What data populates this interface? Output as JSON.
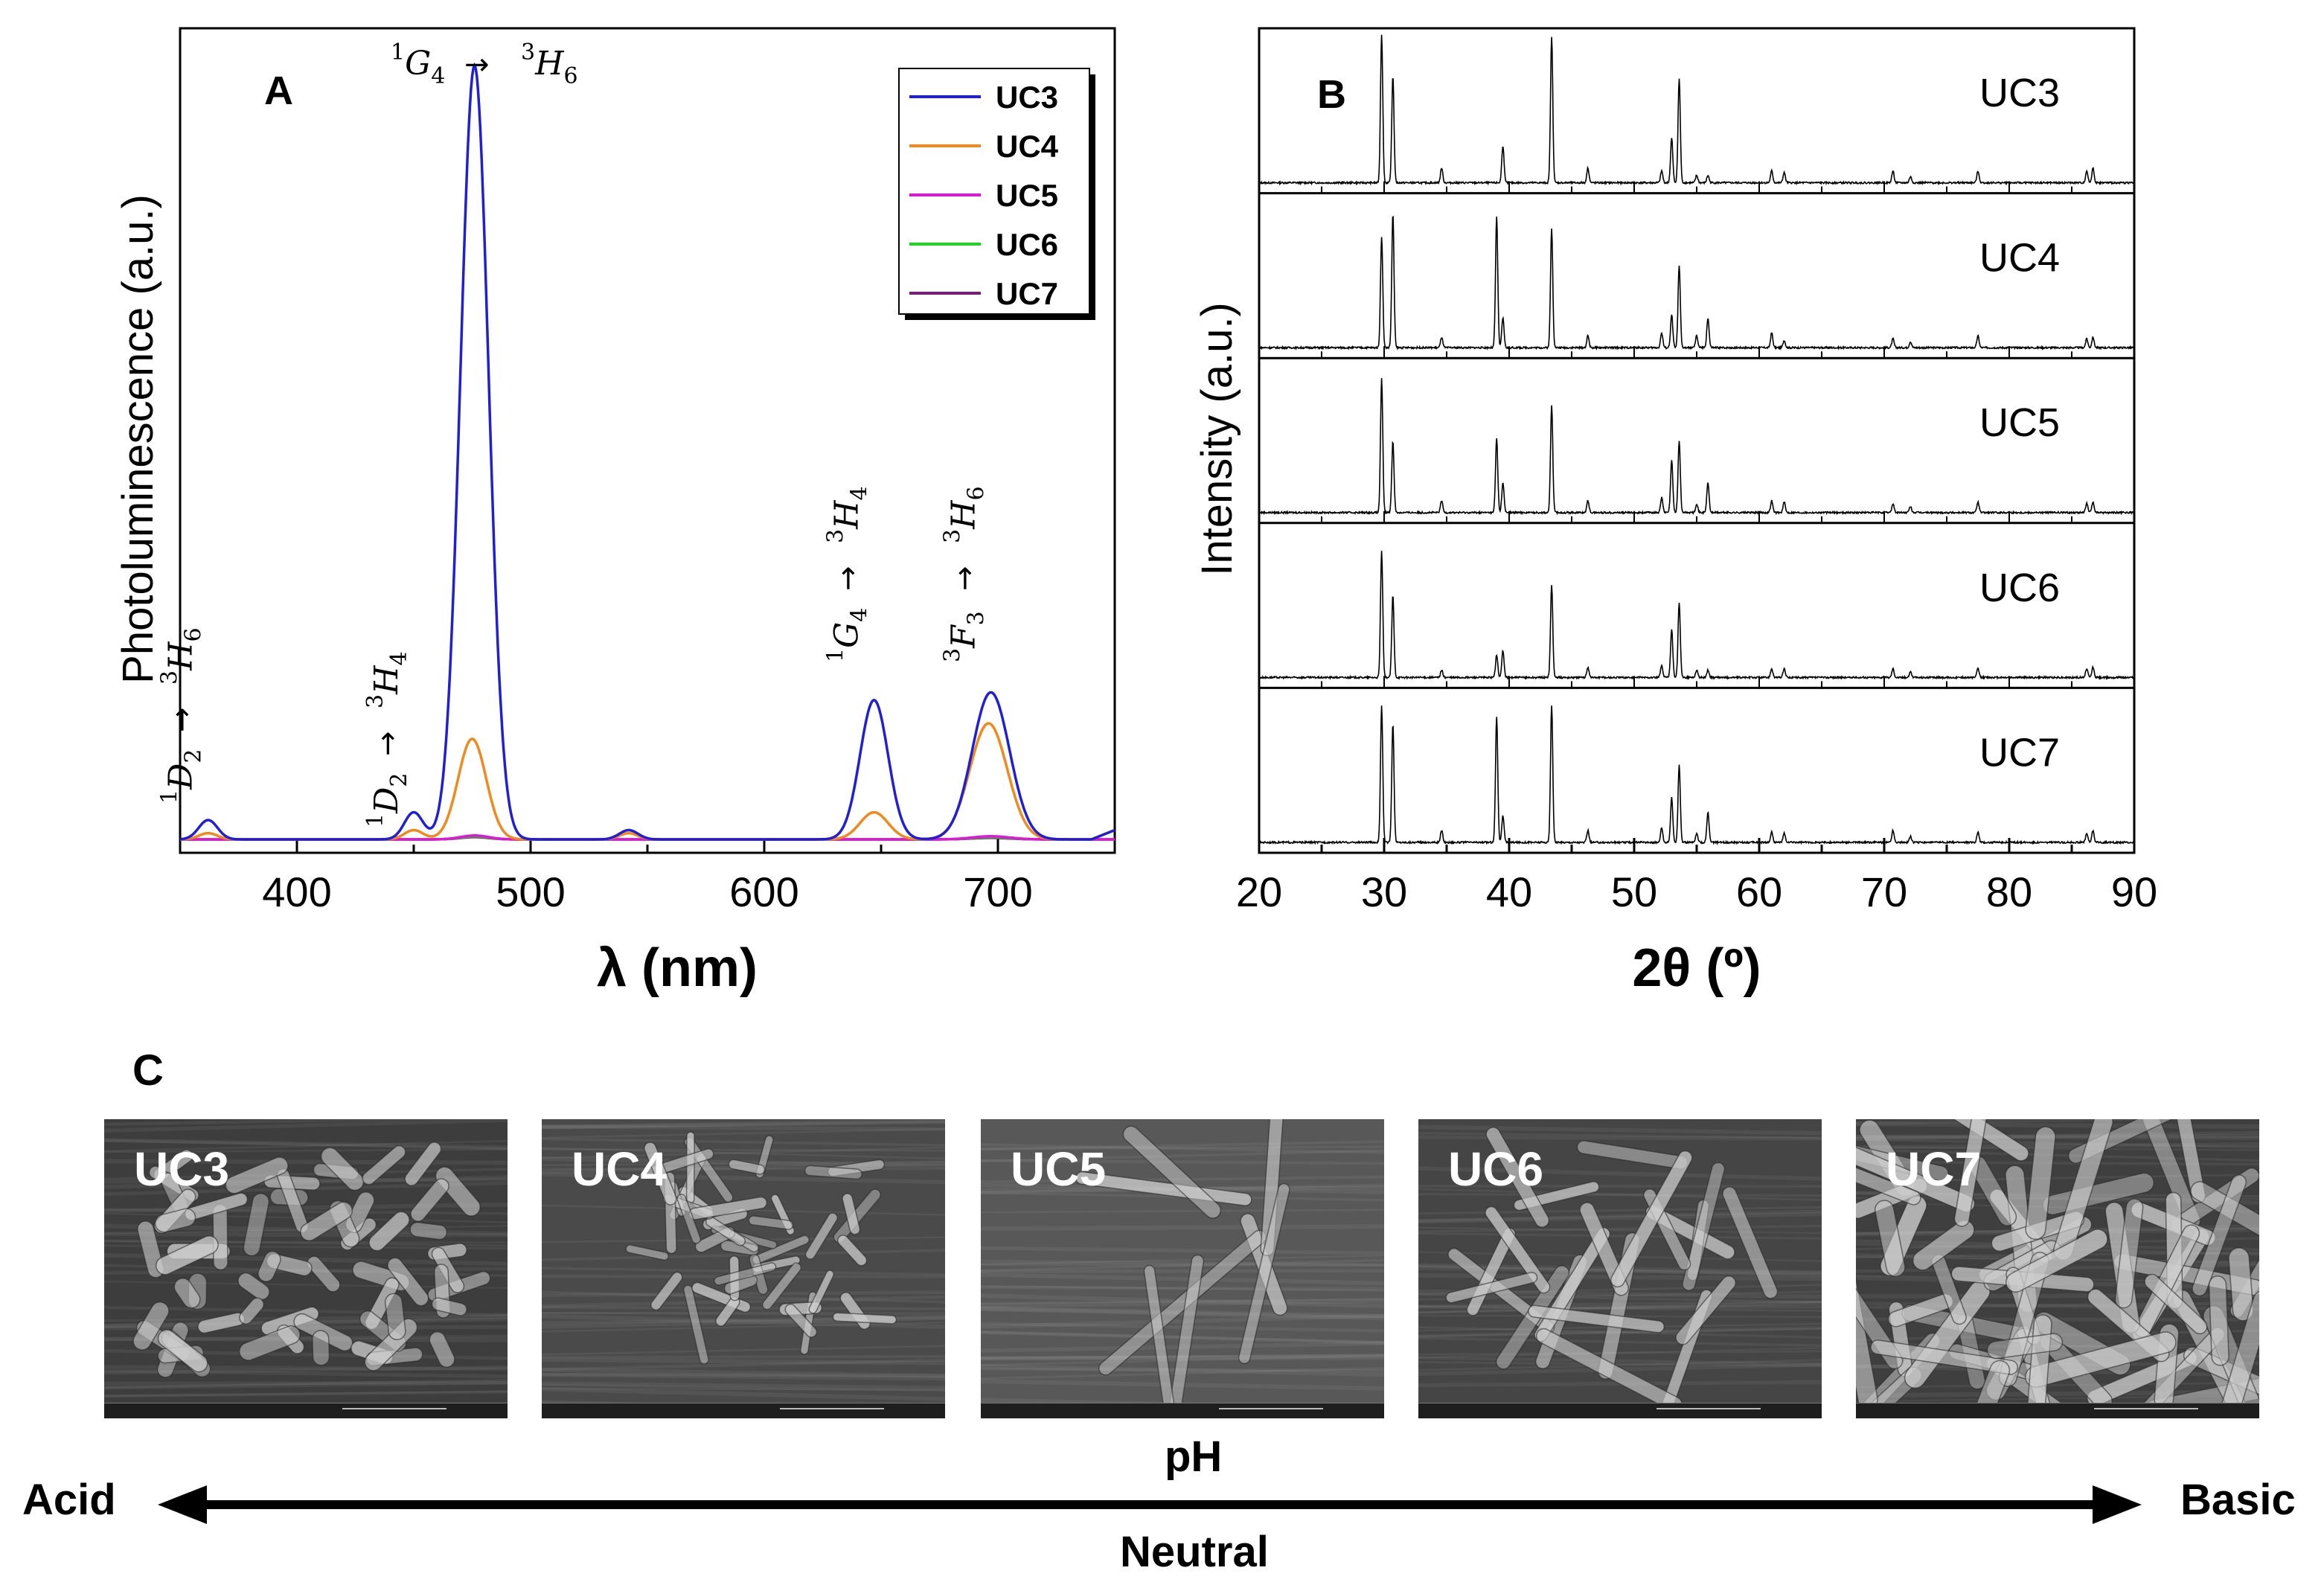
{
  "panelA": {
    "label": "A",
    "ylabel": "Photoluminescence (a.u.)",
    "xlabel": "λ (nm)",
    "annotations": [
      {
        "from_sup": "1",
        "from": "G",
        "from_sub": "4",
        "to_sup": "3",
        "to": "H",
        "to_sub": "6",
        "wavelength": 475,
        "orientation": "horizontal"
      },
      {
        "from_sup": "1",
        "from": "D",
        "from_sub": "2",
        "to_sup": "3",
        "to": "H",
        "to_sub": "6",
        "wavelength": 362,
        "orientation": "vertical"
      },
      {
        "from_sup": "1",
        "from": "D",
        "from_sub": "2",
        "to_sup": "3",
        "to": "H",
        "to_sub": "4",
        "wavelength": 450,
        "orientation": "vertical"
      },
      {
        "from_sup": "1",
        "from": "G",
        "from_sub": "4",
        "to_sup": "3",
        "to": "H",
        "to_sub": "4",
        "wavelength": 647,
        "orientation": "vertical"
      },
      {
        "from_sup": "3",
        "from": "F",
        "from_sub": "3",
        "to_sup": "3",
        "to": "H",
        "to_sub": "6",
        "wavelength": 697,
        "orientation": "vertical"
      }
    ]
  },
  "panelB": {
    "label": "B",
    "ylabel": "Intensity (a.u.)",
    "xlabel": "2θ (º)"
  },
  "panelC": {
    "label": "C",
    "images": [
      "UC3",
      "UC4",
      "UC5",
      "UC6",
      "UC7"
    ],
    "ph_label": "pH",
    "left_label": "Acid",
    "right_label": "Basic",
    "center_label": "Neutral"
  },
  "chart_data": [
    {
      "type": "line",
      "title": "A",
      "xlabel": "λ (nm)",
      "ylabel": "Photoluminescence (a.u.)",
      "xlim": [
        350,
        750
      ],
      "ylim": [
        0,
        1.04
      ],
      "xticks": [
        400,
        500,
        600,
        700
      ],
      "xtick_labels": [
        "400",
        "500",
        "600",
        "700"
      ],
      "legend": "top-right",
      "series": [
        {
          "name": "UC3",
          "color": "#1f1fd6",
          "peaks": [
            {
              "center": 362,
              "height": 0.025,
              "width": 4
            },
            {
              "center": 450,
              "height": 0.035,
              "width": 4
            },
            {
              "center": 476,
              "height": 1.0,
              "width": 6
            },
            {
              "center": 542,
              "height": 0.012,
              "width": 4
            },
            {
              "center": 647,
              "height": 0.18,
              "width": 6
            },
            {
              "center": 697,
              "height": 0.19,
              "width": 8
            }
          ]
        },
        {
          "name": "UC4",
          "color": "#f0891e",
          "peaks": [
            {
              "center": 362,
              "height": 0.008,
              "width": 4
            },
            {
              "center": 450,
              "height": 0.012,
              "width": 4
            },
            {
              "center": 475,
              "height": 0.13,
              "width": 6
            },
            {
              "center": 542,
              "height": 0.008,
              "width": 4
            },
            {
              "center": 647,
              "height": 0.035,
              "width": 6
            },
            {
              "center": 696,
              "height": 0.15,
              "width": 8
            }
          ]
        },
        {
          "name": "UC5",
          "color": "#e016d8",
          "peaks": [
            {
              "center": 476,
              "height": 0.005,
              "width": 6
            },
            {
              "center": 697,
              "height": 0.004,
              "width": 8
            }
          ]
        },
        {
          "name": "UC6",
          "color": "#1fd61f",
          "peaks": [
            {
              "center": 476,
              "height": 0.004,
              "width": 6
            },
            {
              "center": 697,
              "height": 0.003,
              "width": 8
            }
          ]
        },
        {
          "name": "UC7",
          "color": "#7a1d7a",
          "peaks": [
            {
              "center": 476,
              "height": 0.003,
              "width": 6
            },
            {
              "center": 697,
              "height": 0.002,
              "width": 8
            }
          ]
        }
      ]
    },
    {
      "type": "line",
      "title": "B",
      "xlabel": "2θ (º)",
      "ylabel": "Intensity (a.u.)",
      "xlim": [
        20,
        90
      ],
      "xticks": [
        20,
        30,
        40,
        50,
        60,
        70,
        80,
        90
      ],
      "xtick_labels": [
        "20",
        "30",
        "40",
        "50",
        "60",
        "70",
        "80",
        "90"
      ],
      "series": [
        {
          "name": "UC3",
          "peaks": [
            [
              29.8,
              1.0
            ],
            [
              30.7,
              0.72
            ],
            [
              34.6,
              0.1
            ],
            [
              39.0,
              0.0
            ],
            [
              39.5,
              0.25
            ],
            [
              43.4,
              0.98
            ],
            [
              46.3,
              0.1
            ],
            [
              52.2,
              0.08
            ],
            [
              53.0,
              0.3
            ],
            [
              53.6,
              0.7
            ],
            [
              55.0,
              0.05
            ],
            [
              55.9,
              0.05
            ],
            [
              61.0,
              0.08
            ],
            [
              62.0,
              0.07
            ],
            [
              70.7,
              0.08
            ],
            [
              72.1,
              0.04
            ],
            [
              77.5,
              0.08
            ],
            [
              86.2,
              0.08
            ],
            [
              86.7,
              0.1
            ]
          ]
        },
        {
          "name": "UC4",
          "peaks": [
            [
              29.8,
              0.75
            ],
            [
              30.7,
              0.9
            ],
            [
              34.6,
              0.07
            ],
            [
              39.0,
              0.88
            ],
            [
              39.5,
              0.2
            ],
            [
              43.4,
              0.8
            ],
            [
              46.3,
              0.08
            ],
            [
              52.2,
              0.1
            ],
            [
              53.0,
              0.22
            ],
            [
              53.6,
              0.55
            ],
            [
              55.0,
              0.08
            ],
            [
              55.9,
              0.2
            ],
            [
              61.0,
              0.1
            ],
            [
              62.0,
              0.05
            ],
            [
              70.7,
              0.06
            ],
            [
              72.1,
              0.04
            ],
            [
              77.5,
              0.08
            ],
            [
              86.2,
              0.06
            ],
            [
              86.7,
              0.07
            ]
          ]
        },
        {
          "name": "UC5",
          "peaks": [
            [
              29.8,
              0.9
            ],
            [
              30.7,
              0.48
            ],
            [
              34.6,
              0.08
            ],
            [
              39.0,
              0.5
            ],
            [
              39.5,
              0.2
            ],
            [
              43.4,
              0.72
            ],
            [
              46.3,
              0.08
            ],
            [
              52.2,
              0.1
            ],
            [
              53.0,
              0.35
            ],
            [
              53.6,
              0.48
            ],
            [
              55.0,
              0.06
            ],
            [
              55.9,
              0.2
            ],
            [
              61.0,
              0.08
            ],
            [
              62.0,
              0.07
            ],
            [
              70.7,
              0.06
            ],
            [
              72.1,
              0.04
            ],
            [
              77.5,
              0.07
            ],
            [
              86.2,
              0.06
            ],
            [
              86.7,
              0.07
            ]
          ]
        },
        {
          "name": "UC6",
          "peaks": [
            [
              29.8,
              0.85
            ],
            [
              30.7,
              0.55
            ],
            [
              34.6,
              0.05
            ],
            [
              39.0,
              0.15
            ],
            [
              39.5,
              0.18
            ],
            [
              43.4,
              0.62
            ],
            [
              46.3,
              0.07
            ],
            [
              52.2,
              0.08
            ],
            [
              53.0,
              0.32
            ],
            [
              53.6,
              0.5
            ],
            [
              55.0,
              0.05
            ],
            [
              55.9,
              0.05
            ],
            [
              61.0,
              0.06
            ],
            [
              62.0,
              0.06
            ],
            [
              70.7,
              0.06
            ],
            [
              72.1,
              0.04
            ],
            [
              77.5,
              0.06
            ],
            [
              86.2,
              0.06
            ],
            [
              86.7,
              0.07
            ]
          ]
        },
        {
          "name": "UC7",
          "peaks": [
            [
              29.8,
              0.92
            ],
            [
              30.7,
              0.8
            ],
            [
              34.6,
              0.08
            ],
            [
              39.0,
              0.85
            ],
            [
              39.5,
              0.18
            ],
            [
              43.4,
              0.92
            ],
            [
              46.3,
              0.08
            ],
            [
              52.2,
              0.1
            ],
            [
              53.0,
              0.3
            ],
            [
              53.6,
              0.52
            ],
            [
              55.0,
              0.06
            ],
            [
              55.9,
              0.2
            ],
            [
              61.0,
              0.07
            ],
            [
              62.0,
              0.06
            ],
            [
              70.7,
              0.08
            ],
            [
              72.1,
              0.04
            ],
            [
              77.5,
              0.07
            ],
            [
              86.2,
              0.06
            ],
            [
              86.7,
              0.08
            ]
          ]
        }
      ]
    }
  ]
}
